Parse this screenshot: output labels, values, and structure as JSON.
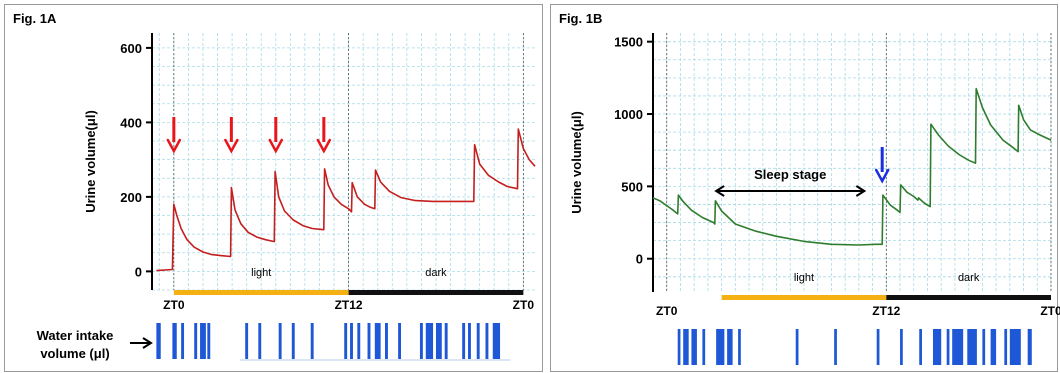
{
  "colors": {
    "seriesA": "#c41e1e",
    "seriesB": "#2e7d2e",
    "grid": "#a8dbe8",
    "light_bar": "#f5b014",
    "dark_bar": "#111111",
    "arrow_red": "#e8161b",
    "arrow_blue": "#1b2fe0",
    "intake": "#1f58d6"
  },
  "chart_data": [
    {
      "type": "line",
      "figure_label": "Fig. 1A",
      "ylabel": "Urine volume(μl)",
      "ylim": [
        -50,
        640
      ],
      "yticks": [
        0,
        200,
        400,
        600
      ],
      "xlim": [
        -1.5,
        24.8
      ],
      "grid": true,
      "x_markers": [
        {
          "label": "ZT0",
          "x": 0
        },
        {
          "label": "ZT12",
          "x": 12
        },
        {
          "label": "ZT0",
          "x": 24
        }
      ],
      "phases": [
        {
          "label": "light",
          "start": 0,
          "end": 12
        },
        {
          "label": "dark",
          "start": 12,
          "end": 24
        }
      ],
      "series": [
        {
          "x": [
            -1.2,
            -0.1,
            0.0,
            0.2,
            0.5,
            0.9,
            1.4,
            2.0,
            2.6,
            3.3,
            3.9,
            3.95,
            4.2,
            4.6,
            5.1,
            5.7,
            6.3,
            6.9,
            6.95,
            7.2,
            7.6,
            8.2,
            8.9,
            9.5,
            10.3,
            10.35,
            10.6,
            11.0,
            11.5,
            12.0,
            12.2,
            12.25,
            12.6,
            13.1,
            13.5,
            13.8,
            13.85,
            14.2,
            14.8,
            15.6,
            16.6,
            17.8,
            18.9,
            20.6,
            20.65,
            21.0,
            21.6,
            22.3,
            22.9,
            23.6,
            23.65,
            24.0,
            24.4,
            24.8
          ],
          "y": [
            2,
            5,
            180,
            150,
            115,
            85,
            65,
            52,
            45,
            42,
            40,
            225,
            165,
            128,
            105,
            92,
            85,
            80,
            268,
            200,
            162,
            138,
            122,
            115,
            112,
            275,
            232,
            200,
            180,
            168,
            160,
            238,
            200,
            180,
            172,
            168,
            272,
            240,
            215,
            198,
            190,
            188,
            188,
            188,
            340,
            288,
            258,
            240,
            228,
            222,
            382,
            330,
            300,
            282
          ]
        }
      ],
      "annotations": [
        {
          "type": "arrow-down",
          "x": [
            0.0,
            3.95,
            7.0,
            10.3
          ]
        }
      ],
      "water_intake": {
        "label": "Water intake volume (μl)",
        "events": [
          [
            -1.2,
            -0.9
          ],
          [
            -0.1,
            0.2
          ],
          [
            0.5,
            0.7
          ],
          [
            1.4,
            1.6
          ],
          [
            1.8,
            2.2
          ],
          [
            2.3,
            2.5
          ],
          [
            4.9,
            5.1
          ],
          [
            5.8,
            6.0
          ],
          [
            7.2,
            7.4
          ],
          [
            8.1,
            8.3
          ],
          [
            9.4,
            9.6
          ],
          [
            11.7,
            11.9
          ],
          [
            12.1,
            12.3
          ],
          [
            12.6,
            12.8
          ],
          [
            13.3,
            13.5
          ],
          [
            13.8,
            14.2
          ],
          [
            14.5,
            14.7
          ],
          [
            15.4,
            15.6
          ],
          [
            16.9,
            17.1
          ],
          [
            17.3,
            17.8
          ],
          [
            18.0,
            18.4
          ],
          [
            18.6,
            18.8
          ],
          [
            19.8,
            20.0
          ],
          [
            20.2,
            20.4
          ],
          [
            20.8,
            21.0
          ],
          [
            21.4,
            21.6
          ],
          [
            21.9,
            22.4
          ]
        ]
      }
    },
    {
      "type": "line",
      "figure_label": "Fig. 1B",
      "ylabel": "Urine volume(μl)",
      "ylim": [
        -230,
        1560
      ],
      "yticks": [
        0,
        500,
        1000,
        1500
      ],
      "xlim": [
        -1.0,
        28.0
      ],
      "grid": true,
      "x_markers": [
        {
          "label": "ZT0",
          "x": 0
        },
        {
          "label": "ZT12",
          "x": 16
        },
        {
          "label": "ZT0",
          "x": 28
        }
      ],
      "phases": [
        {
          "label": "light",
          "start": 4,
          "end": 16
        },
        {
          "label": "dark",
          "start": 16,
          "end": 28
        }
      ],
      "annotation_text": "Sleep stage",
      "series": [
        {
          "x": [
            -1.0,
            -0.5,
            0.4,
            0.8,
            0.85,
            1.2,
            1.8,
            2.6,
            3.4,
            3.5,
            3.55,
            4.0,
            5.0,
            6.5,
            8.0,
            10.0,
            12.0,
            14.0,
            15.2,
            15.7,
            15.75,
            16.3,
            16.8,
            17.0,
            17.05,
            17.5,
            18.0,
            18.3,
            18.35,
            18.7,
            19.0,
            19.2,
            19.25,
            19.8,
            20.5,
            21.3,
            22.0,
            22.5,
            22.55,
            23.0,
            23.6,
            24.5,
            25.2,
            25.6,
            25.65,
            26.0,
            26.5,
            27.2,
            28.0
          ],
          "y": [
            420,
            400,
            340,
            310,
            440,
            395,
            335,
            285,
            250,
            240,
            400,
            330,
            240,
            190,
            155,
            120,
            100,
            95,
            100,
            100,
            440,
            370,
            335,
            320,
            510,
            460,
            430,
            405,
            420,
            390,
            370,
            360,
            930,
            855,
            780,
            720,
            680,
            660,
            1175,
            1045,
            925,
            820,
            770,
            740,
            1060,
            960,
            890,
            855,
            820
          ]
        }
      ],
      "annotations": [
        {
          "type": "arrow-down",
          "x": [
            15.7
          ]
        }
      ],
      "water_intake": {
        "events": [
          [
            0.8,
            1.0
          ],
          [
            1.2,
            1.6
          ],
          [
            1.8,
            2.2
          ],
          [
            2.6,
            2.8
          ],
          [
            3.6,
            4.2
          ],
          [
            4.4,
            4.8
          ],
          [
            5.2,
            5.4
          ],
          [
            9.4,
            9.6
          ],
          [
            12.2,
            12.4
          ],
          [
            15.3,
            15.5
          ],
          [
            17.0,
            17.2
          ],
          [
            18.4,
            18.6
          ],
          [
            19.4,
            20.0
          ],
          [
            20.4,
            20.6
          ],
          [
            20.8,
            21.6
          ],
          [
            21.9,
            22.6
          ],
          [
            23.0,
            23.2
          ],
          [
            23.6,
            24.0
          ],
          [
            24.6,
            24.8
          ],
          [
            25.0,
            25.8
          ],
          [
            26.3,
            26.6
          ]
        ]
      }
    }
  ]
}
